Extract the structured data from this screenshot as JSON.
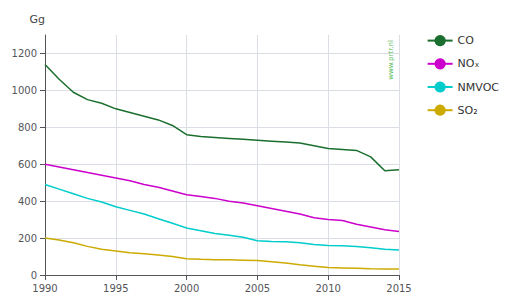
{
  "chart_data": {
    "type": "line",
    "ylabel": "Gg",
    "annotations": [
      "www.prtr.nl"
    ],
    "x": [
      1990,
      1991,
      1992,
      1993,
      1994,
      1995,
      1996,
      1997,
      1998,
      1999,
      2000,
      2001,
      2002,
      2003,
      2004,
      2005,
      2006,
      2007,
      2008,
      2009,
      2010,
      2011,
      2012,
      2013,
      2014,
      2015
    ],
    "series": [
      {
        "name": "CO",
        "color": "#1a6e2e",
        "values": [
          1140,
          1060,
          990,
          950,
          930,
          900,
          880,
          860,
          840,
          810,
          760,
          750,
          745,
          740,
          735,
          730,
          725,
          720,
          715,
          700,
          685,
          680,
          675,
          640,
          565,
          570
        ]
      },
      {
        "name": "NOₓ",
        "color": "#cc00cc",
        "values": [
          600,
          585,
          570,
          555,
          540,
          525,
          510,
          490,
          475,
          455,
          435,
          425,
          415,
          400,
          390,
          375,
          360,
          345,
          330,
          310,
          300,
          295,
          275,
          260,
          245,
          235
        ]
      },
      {
        "name": "NMVOC",
        "color": "#00cccc",
        "values": [
          490,
          465,
          440,
          415,
          395,
          370,
          350,
          330,
          305,
          280,
          255,
          240,
          225,
          215,
          205,
          185,
          182,
          180,
          175,
          165,
          160,
          158,
          155,
          148,
          140,
          135
        ]
      },
      {
        "name": "SO₂",
        "color": "#ccaa00",
        "values": [
          200,
          190,
          175,
          155,
          140,
          130,
          120,
          115,
          108,
          100,
          88,
          85,
          83,
          82,
          80,
          78,
          72,
          65,
          55,
          48,
          40,
          38,
          36,
          34,
          33,
          32
        ]
      }
    ],
    "xlim": [
      1990,
      2015
    ],
    "xticks": [
      1990,
      1995,
      2000,
      2005,
      2010,
      2015
    ],
    "ylim": [
      0,
      1300
    ],
    "yticks": [
      0,
      200,
      400,
      600,
      800,
      1000,
      1200
    ],
    "grid": true,
    "legend": "right"
  }
}
